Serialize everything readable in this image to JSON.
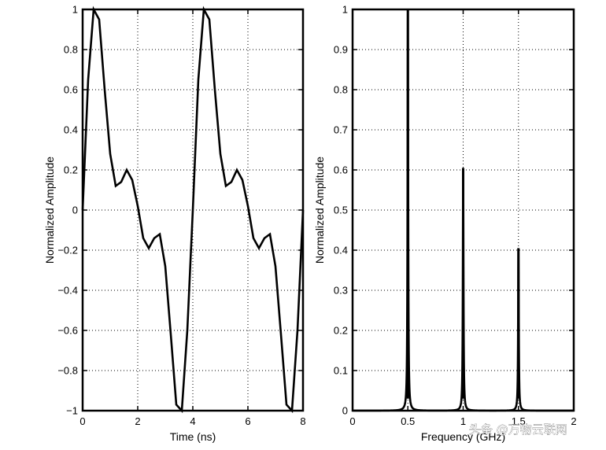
{
  "watermark": "头条 @万物云联网",
  "chart_data": [
    {
      "type": "line",
      "xlabel": "Time (ns)",
      "ylabel": "Normalized Amplitude",
      "xlim": [
        0,
        8
      ],
      "ylim": [
        -1,
        1
      ],
      "xticks": [
        0,
        2,
        4,
        6,
        8
      ],
      "yticks": [
        -1,
        -0.8,
        -0.6,
        -0.4,
        -0.2,
        0,
        0.2,
        0.4,
        0.6,
        0.8,
        1
      ],
      "grid": true,
      "line_color": "#000000",
      "series": [
        {
          "x": [
            0,
            0.2,
            0.4,
            0.6,
            0.8,
            1.0,
            1.2,
            1.4,
            1.6,
            1.8,
            2.0,
            2.2,
            2.4,
            2.6,
            2.8,
            3.0,
            3.2,
            3.4,
            3.6,
            3.8,
            4.0,
            4.2,
            4.4,
            4.6,
            4.8,
            5.0,
            5.2,
            5.4,
            5.6,
            5.8,
            6.0,
            6.2,
            6.4,
            6.6,
            6.8,
            7.0,
            7.2,
            7.4,
            7.6,
            7.8,
            8.0
          ],
          "values": [
            0,
            0.65,
            1.0,
            0.95,
            0.6,
            0.28,
            0.12,
            0.14,
            0.2,
            0.15,
            0.02,
            -0.14,
            -0.19,
            -0.14,
            -0.12,
            -0.28,
            -0.62,
            -0.97,
            -1.0,
            -0.6,
            0.0,
            0.65,
            1.0,
            0.95,
            0.6,
            0.28,
            0.12,
            0.14,
            0.2,
            0.15,
            0.02,
            -0.14,
            -0.19,
            -0.14,
            -0.12,
            -0.28,
            -0.62,
            -0.97,
            -1.0,
            -0.6,
            0.0
          ]
        }
      ]
    },
    {
      "type": "line",
      "xlabel": "Frequency (GHz)",
      "ylabel": "Normalized Amplitude",
      "xlim": [
        0,
        2
      ],
      "ylim": [
        0,
        1
      ],
      "xticks": [
        0,
        0.5,
        1,
        1.5,
        2
      ],
      "yticks": [
        0,
        0.1,
        0.2,
        0.3,
        0.4,
        0.5,
        0.6,
        0.7,
        0.8,
        0.9,
        1
      ],
      "grid": true,
      "line_color": "#000000",
      "peaks": [
        {
          "x": 0.5,
          "value": 1.0
        },
        {
          "x": 1.0,
          "value": 0.605
        },
        {
          "x": 1.5,
          "value": 0.405
        }
      ]
    }
  ]
}
